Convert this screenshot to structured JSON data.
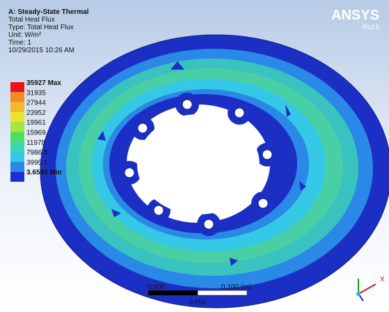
{
  "header": {
    "title": "A: Steady-State Thermal",
    "lines": [
      "Total Heat Flux",
      "Type: Total Heat Flux",
      "Unit: W/m²",
      "Time: 1",
      "10/29/2015 10:26 AM"
    ]
  },
  "logo": {
    "name": "ANSYS",
    "version": "R14.5"
  },
  "legend": [
    {
      "label": "35927 Max",
      "color": "#e8141c"
    },
    {
      "label": "31935",
      "color": "#f58a1f"
    },
    {
      "label": "27944",
      "color": "#f2b92a"
    },
    {
      "label": "23952",
      "color": "#e8e52a"
    },
    {
      "label": "19961",
      "color": "#a6e53a"
    },
    {
      "label": "15969",
      "color": "#4fdc62"
    },
    {
      "label": "11978",
      "color": "#3ad8b0"
    },
    {
      "label": "7986.5",
      "color": "#35c8e6"
    },
    {
      "label": "3995.1",
      "color": "#2a88e6"
    },
    {
      "label": "3.6583 Min",
      "color": "#1a2fcf"
    }
  ],
  "scale_bar": {
    "start": "0.000",
    "end": "0.100 (m)",
    "middle": "0.050"
  },
  "triad": {
    "x_label": "X"
  }
}
